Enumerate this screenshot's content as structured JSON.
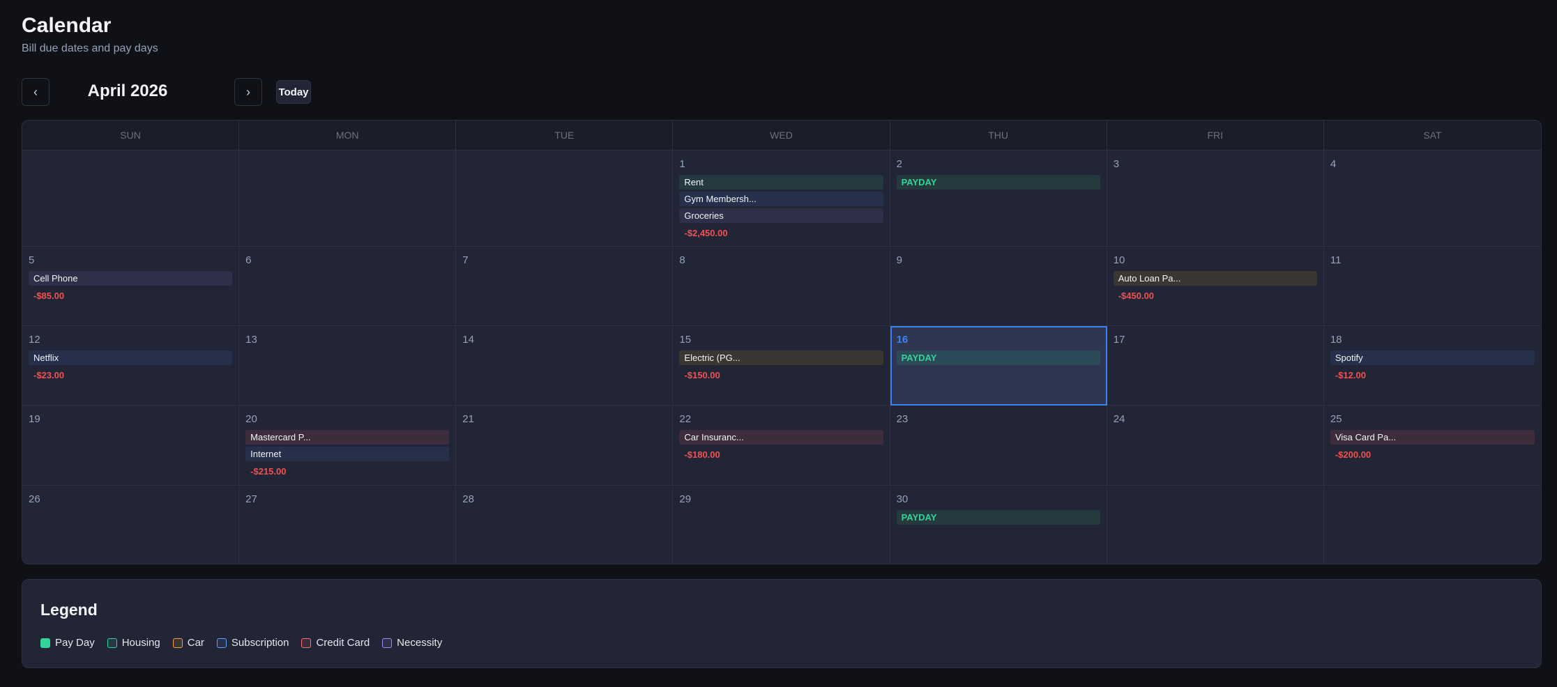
{
  "header": {
    "title": "Calendar",
    "subtitle": "Bill due dates and pay days"
  },
  "nav": {
    "prev_icon": "chevron-left-icon",
    "prev": "‹",
    "next_icon": "chevron-right-icon",
    "next": "›",
    "month": "April 2026",
    "today_label": "Today"
  },
  "weekdays": [
    "SUN",
    "MON",
    "TUE",
    "WED",
    "THU",
    "FRI",
    "SAT"
  ],
  "colors": {
    "payday": "#34d399",
    "housing": "#243a40",
    "subscription": "#26304a",
    "necessity": "#302f4a",
    "car": "#3c3632",
    "credit_card": "#3d2c3b",
    "payday_bg": "#253a3f",
    "today_border": "#3b82f6",
    "expense": "#f05252"
  },
  "today_day": "16",
  "cells": [
    {
      "day": ""
    },
    {
      "day": ""
    },
    {
      "day": ""
    },
    {
      "day": "1",
      "events": [
        {
          "label": "Rent",
          "cat": "housing"
        },
        {
          "label": "Gym Membersh...",
          "cat": "subscription"
        },
        {
          "label": "Groceries",
          "cat": "necessity"
        }
      ],
      "amount": "-$2,450.00"
    },
    {
      "day": "2",
      "events": [
        {
          "label": "PAYDAY",
          "cat": "payday"
        }
      ]
    },
    {
      "day": "3"
    },
    {
      "day": "4"
    },
    {
      "day": "5",
      "events": [
        {
          "label": "Cell Phone",
          "cat": "necessity"
        }
      ],
      "amount": "-$85.00"
    },
    {
      "day": "6"
    },
    {
      "day": "7"
    },
    {
      "day": "8"
    },
    {
      "day": "9"
    },
    {
      "day": "10",
      "events": [
        {
          "label": "Auto Loan Pa...",
          "cat": "car"
        }
      ],
      "amount": "-$450.00"
    },
    {
      "day": "11"
    },
    {
      "day": "12",
      "events": [
        {
          "label": "Netflix",
          "cat": "subscription"
        }
      ],
      "amount": "-$23.00"
    },
    {
      "day": "13"
    },
    {
      "day": "14"
    },
    {
      "day": "15",
      "events": [
        {
          "label": "Electric (PG...",
          "cat": "car"
        }
      ],
      "amount": "-$150.00"
    },
    {
      "day": "16",
      "events": [
        {
          "label": "PAYDAY",
          "cat": "payday"
        }
      ]
    },
    {
      "day": "17"
    },
    {
      "day": "18",
      "events": [
        {
          "label": "Spotify",
          "cat": "subscription"
        }
      ],
      "amount": "-$12.00"
    },
    {
      "day": "19"
    },
    {
      "day": "20",
      "events": [
        {
          "label": "Mastercard P...",
          "cat": "credit_card"
        },
        {
          "label": "Internet",
          "cat": "subscription"
        }
      ],
      "amount": "-$215.00"
    },
    {
      "day": "21"
    },
    {
      "day": "22",
      "events": [
        {
          "label": "Car Insuranc...",
          "cat": "credit_card"
        }
      ],
      "amount": "-$180.00"
    },
    {
      "day": "23"
    },
    {
      "day": "24"
    },
    {
      "day": "25",
      "events": [
        {
          "label": "Visa Card Pa...",
          "cat": "credit_card"
        }
      ],
      "amount": "-$200.00"
    },
    {
      "day": "26"
    },
    {
      "day": "27"
    },
    {
      "day": "28"
    },
    {
      "day": "29"
    },
    {
      "day": "30",
      "events": [
        {
          "label": "PAYDAY",
          "cat": "payday"
        }
      ]
    },
    {
      "day": ""
    },
    {
      "day": ""
    }
  ],
  "legend": {
    "title": "Legend",
    "items": [
      {
        "label": "Pay Day",
        "border": "#34d399",
        "fill": "#34d399"
      },
      {
        "label": "Housing",
        "border": "#34d399",
        "fill": "#243a40"
      },
      {
        "label": "Car",
        "border": "#f59e42",
        "fill": "#3c3632"
      },
      {
        "label": "Subscription",
        "border": "#60a5fa",
        "fill": "#26304a"
      },
      {
        "label": "Credit Card",
        "border": "#f87171",
        "fill": "#3d2c3b"
      },
      {
        "label": "Necessity",
        "border": "#a78bfa",
        "fill": "#302f4a"
      }
    ]
  }
}
